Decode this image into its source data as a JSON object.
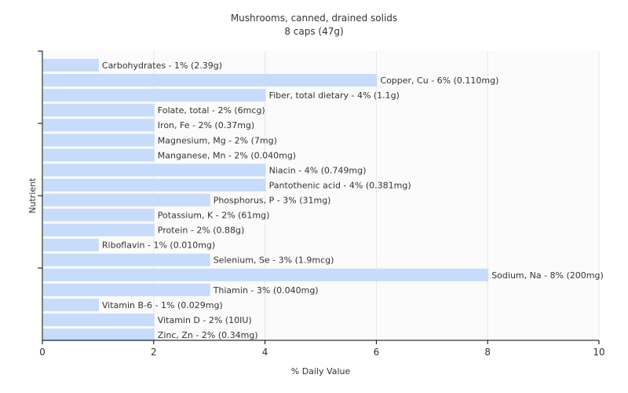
{
  "chart_data": {
    "type": "bar",
    "orientation": "horizontal",
    "title": "Mushrooms, canned, drained solids",
    "subtitle": "8 caps (47g)",
    "xlabel": "% Daily Value",
    "ylabel": "Nutrient",
    "xlim": [
      0,
      10
    ],
    "xticks": [
      0,
      2,
      4,
      6,
      8,
      10
    ],
    "grid": true,
    "bar_color": "#c6dcfa",
    "categories": [
      "Carbohydrates",
      "Copper, Cu",
      "Fiber, total dietary",
      "Folate, total",
      "Iron, Fe",
      "Magnesium, Mg",
      "Manganese, Mn",
      "Niacin",
      "Pantothenic acid",
      "Phosphorus, P",
      "Potassium, K",
      "Protein",
      "Riboflavin",
      "Selenium, Se",
      "Sodium, Na",
      "Thiamin",
      "Vitamin B-6",
      "Vitamin D",
      "Zinc, Zn"
    ],
    "values": [
      1,
      6,
      4,
      2,
      2,
      2,
      2,
      4,
      4,
      3,
      2,
      2,
      1,
      3,
      8,
      3,
      1,
      2,
      2
    ],
    "labels": [
      "Carbohydrates - 1% (2.39g)",
      "Copper, Cu - 6% (0.110mg)",
      "Fiber, total dietary - 4% (1.1g)",
      "Folate, total - 2% (6mcg)",
      "Iron, Fe - 2% (0.37mg)",
      "Magnesium, Mg - 2% (7mg)",
      "Manganese, Mn - 2% (0.040mg)",
      "Niacin - 4% (0.749mg)",
      "Pantothenic acid - 4% (0.381mg)",
      "Phosphorus, P - 3% (31mg)",
      "Potassium, K - 2% (61mg)",
      "Protein - 2% (0.88g)",
      "Riboflavin - 1% (0.010mg)",
      "Selenium, Se - 3% (1.9mcg)",
      "Sodium, Na - 8% (200mg)",
      "Thiamin - 3% (0.040mg)",
      "Vitamin B-6 - 1% (0.029mg)",
      "Vitamin D - 2% (10IU)",
      "Zinc, Zn - 2% (0.34mg)"
    ]
  }
}
